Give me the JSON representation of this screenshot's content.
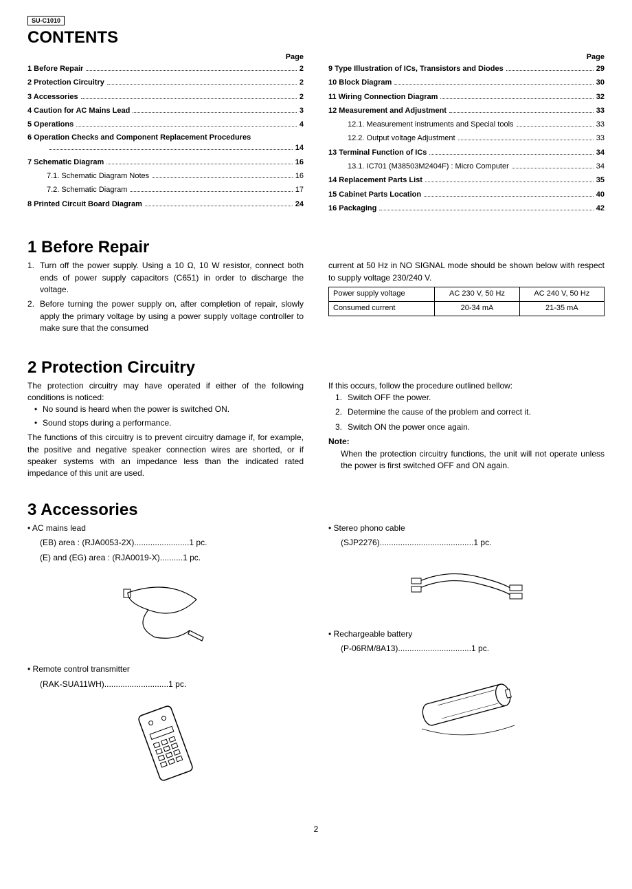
{
  "model": "SU-C1010",
  "contents_title": "CONTENTS",
  "page_label": "Page",
  "toc_left": [
    {
      "label": "1 Before Repair",
      "page": "2",
      "bold": true
    },
    {
      "label": "2 Protection Circuitry",
      "page": "2",
      "bold": true
    },
    {
      "label": "3 Accessories",
      "page": "2",
      "bold": true
    },
    {
      "label": "4 Caution for AC Mains Lead",
      "page": "3",
      "bold": true
    },
    {
      "label": "5 Operations",
      "page": "4",
      "bold": true
    },
    {
      "label": "6 Operation Checks and Component Replacement Procedures",
      "page": "14",
      "bold": true,
      "wrap": true
    },
    {
      "label": "7 Schematic Diagram",
      "page": "16",
      "bold": true
    },
    {
      "label": "7.1. Schematic Diagram Notes",
      "page": "16",
      "bold": false,
      "indent": 1
    },
    {
      "label": "7.2. Schematic Diagram",
      "page": "17",
      "bold": false,
      "indent": 1
    },
    {
      "label": "8 Printed Circuit Board Diagram",
      "page": "24",
      "bold": true
    }
  ],
  "toc_right": [
    {
      "label": "9 Type Illustration of ICs, Transistors and Diodes",
      "page": "29",
      "bold": true
    },
    {
      "label": "10 Block Diagram",
      "page": "30",
      "bold": true
    },
    {
      "label": "11 Wiring Connection Diagram",
      "page": "32",
      "bold": true
    },
    {
      "label": "12 Measurement and Adjustment",
      "page": "33",
      "bold": true
    },
    {
      "label": "12.1. Measurement instruments and Special tools",
      "page": "33",
      "bold": false,
      "indent": 1
    },
    {
      "label": "12.2. Output voltage Adjustment",
      "page": "33",
      "bold": false,
      "indent": 1
    },
    {
      "label": "13 Terminal Function of ICs",
      "page": "34",
      "bold": true
    },
    {
      "label": "13.1. IC701 (M38503M2404F) : Micro Computer",
      "page": "34",
      "bold": false,
      "indent": 1
    },
    {
      "label": "14 Replacement Parts List",
      "page": "35",
      "bold": true
    },
    {
      "label": "15 Cabinet Parts Location",
      "page": "40",
      "bold": true
    },
    {
      "label": "16 Packaging",
      "page": "42",
      "bold": true
    }
  ],
  "section1": {
    "heading": "1   Before Repair",
    "left": [
      "Turn off the power supply. Using a 10 Ω, 10 W resistor, connect both ends of power supply capacitors (C651) in order to discharge the voltage.",
      "Before turning the power supply on, after completion of repair, slowly apply the primary voltage by using a power supply voltage controller to make sure that the consumed"
    ],
    "right_intro": "current at 50 Hz in NO SIGNAL mode should be shown below with respect to supply voltage 230/240 V.",
    "table": {
      "r1c1": "Power supply voltage",
      "r1c2": "AC 230 V, 50 Hz",
      "r1c3": "AC 240 V, 50 Hz",
      "r2c1": "Consumed current",
      "r2c2": "20-34 mA",
      "r2c3": "21-35 mA"
    }
  },
  "section2": {
    "heading": "2   Protection Circuitry",
    "left_intro": "The protection circuitry may have operated if either of the following conditions is noticed:",
    "left_bullets": [
      "No sound is heard when the power is switched ON.",
      "Sound stops during a performance."
    ],
    "left_para": "The functions of this circuitry is to prevent circuitry damage if, for example, the positive and negative speaker connection wires are shorted, or if speaker systems with an impedance less than the indicated rated impedance of this unit are used.",
    "right_intro": "If this occurs, follow the procedure outlined bellow:",
    "right_steps": [
      "Switch OFF the power.",
      "Determine the cause of the problem and correct it.",
      "Switch ON the power once again."
    ],
    "note_label": "Note:",
    "note_text": "When the protection circuitry functions, the unit will not operate unless the power is first switched OFF and ON again."
  },
  "section3": {
    "heading": "3   Accessories",
    "left_items": [
      {
        "title": "AC mains lead",
        "subs": [
          "(EB) area : (RJA0053-2X)........................1 pc.",
          "(E) and (EG) area : (RJA0019-X)..........1 pc."
        ],
        "icon": "cable"
      },
      {
        "title": "Remote control transmitter",
        "subs": [
          "(RAK-SUA11WH)............................1 pc."
        ],
        "icon": "remote"
      }
    ],
    "right_items": [
      {
        "title": "Stereo phono cable",
        "subs": [
          "(SJP2276).........................................1 pc."
        ],
        "icon": "phono"
      },
      {
        "title": "Rechargeable battery",
        "subs": [
          "(P-06RM/8A13)................................1 pc."
        ],
        "icon": "battery"
      }
    ]
  },
  "page_number": "2"
}
